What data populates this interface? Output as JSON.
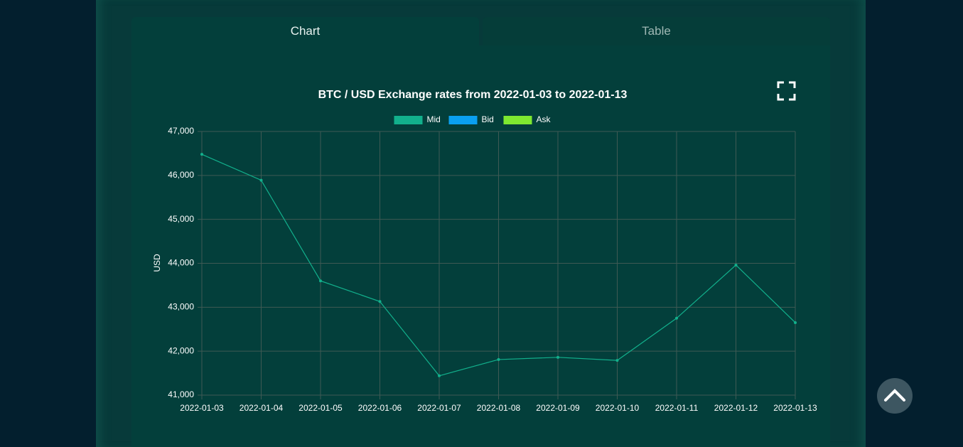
{
  "tabs": [
    "Chart",
    "Table"
  ],
  "chart_data": {
    "type": "line",
    "title": "BTC / USD Exchange rates from 2022-01-03 to 2022-01-13",
    "y_label": "USD",
    "categories": [
      "2022-01-03",
      "2022-01-04",
      "2022-01-05",
      "2022-01-06",
      "2022-01-07",
      "2022-01-08",
      "2022-01-09",
      "2022-01-10",
      "2022-01-11",
      "2022-01-12",
      "2022-01-13"
    ],
    "series": [
      {
        "name": "Mid",
        "color": "#12b08c",
        "values": [
          46480,
          45890,
          43600,
          43130,
          41440,
          41810,
          41860,
          41790,
          42750,
          43960,
          42650
        ]
      },
      {
        "name": "Bid",
        "color": "#0aa0f0",
        "values": [
          null,
          null,
          null,
          null,
          null,
          null,
          null,
          null,
          null,
          null,
          null
        ]
      },
      {
        "name": "Ask",
        "color": "#7ee830",
        "values": [
          null,
          null,
          null,
          null,
          null,
          null,
          null,
          null,
          null,
          null,
          null
        ]
      }
    ],
    "ylim": [
      41000,
      47000
    ],
    "yticks": [
      {
        "value": 41000,
        "label": "41,000"
      },
      {
        "value": 42000,
        "label": "42,000"
      },
      {
        "value": 43000,
        "label": "43,000"
      },
      {
        "value": 44000,
        "label": "44,000"
      },
      {
        "value": 45000,
        "label": "45,000"
      },
      {
        "value": 46000,
        "label": "46,000"
      },
      {
        "value": 47000,
        "label": "47,000"
      }
    ],
    "grid": true
  }
}
